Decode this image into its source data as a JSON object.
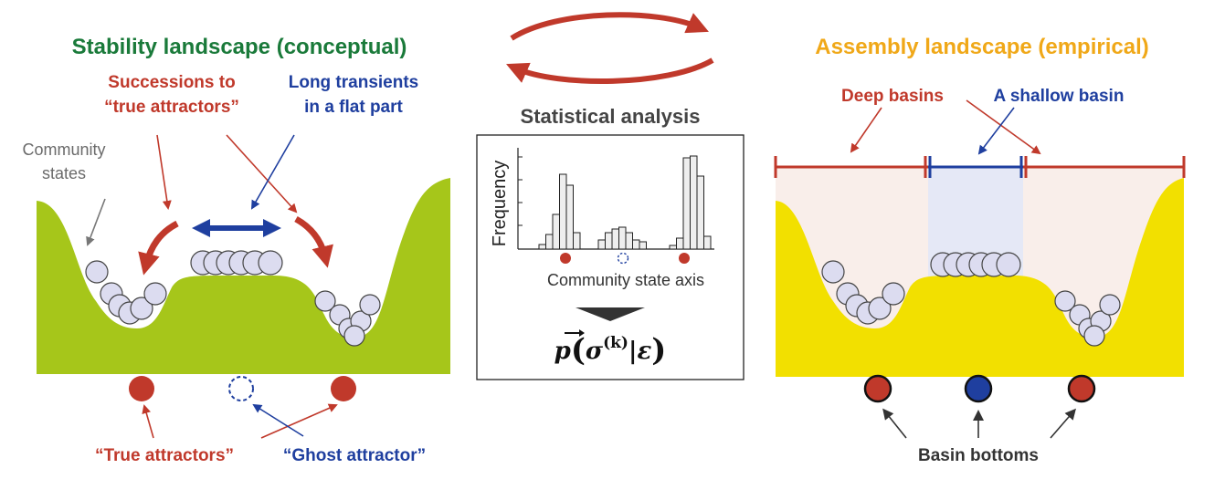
{
  "colors": {
    "green_title": "#1a7a3a",
    "red": "#c0392b",
    "blue": "#1f3f9f",
    "orange_title": "#f0a818",
    "green_fill": "#a6c61a",
    "yellow_fill": "#f2e000",
    "ball_fill": "#dcdcf0",
    "grey_text": "#6b6b6b"
  },
  "left": {
    "title": "Stability landscape (conceptual)",
    "successions_line1": "Successions to",
    "successions_line2": "“true attractors”",
    "transients_line1": "Long transients",
    "transients_line2": "in a flat part",
    "community_line1": "Community",
    "community_line2": "states",
    "true_attractors": "“True attractors”",
    "ghost_attractor": "“Ghost attractor”"
  },
  "center": {
    "heading": "Statistical analysis",
    "frequency": "Frequency",
    "axis": "Community state axis",
    "formula_p": "p",
    "formula_sigma": "σ",
    "formula_k": "(k)",
    "formula_bar": "|",
    "formula_eps": "ε",
    "histogram_groups": [
      {
        "label_icon": "red-dot",
        "bars": [
          0.05,
          0.16,
          0.38,
          0.82,
          0.7,
          0.18
        ]
      },
      {
        "label_icon": "blue-dashed-dot",
        "bars": [
          0.1,
          0.18,
          0.22,
          0.24,
          0.18,
          0.1,
          0.08
        ]
      },
      {
        "label_icon": "red-dot",
        "bars": [
          0.04,
          0.12,
          1.0,
          1.02,
          0.8,
          0.14
        ]
      }
    ]
  },
  "right": {
    "title": "Assembly landscape (empirical)",
    "deep_basins": "Deep basins",
    "shallow_basin": "A shallow basin",
    "basin_bottoms": "Basin bottoms"
  }
}
